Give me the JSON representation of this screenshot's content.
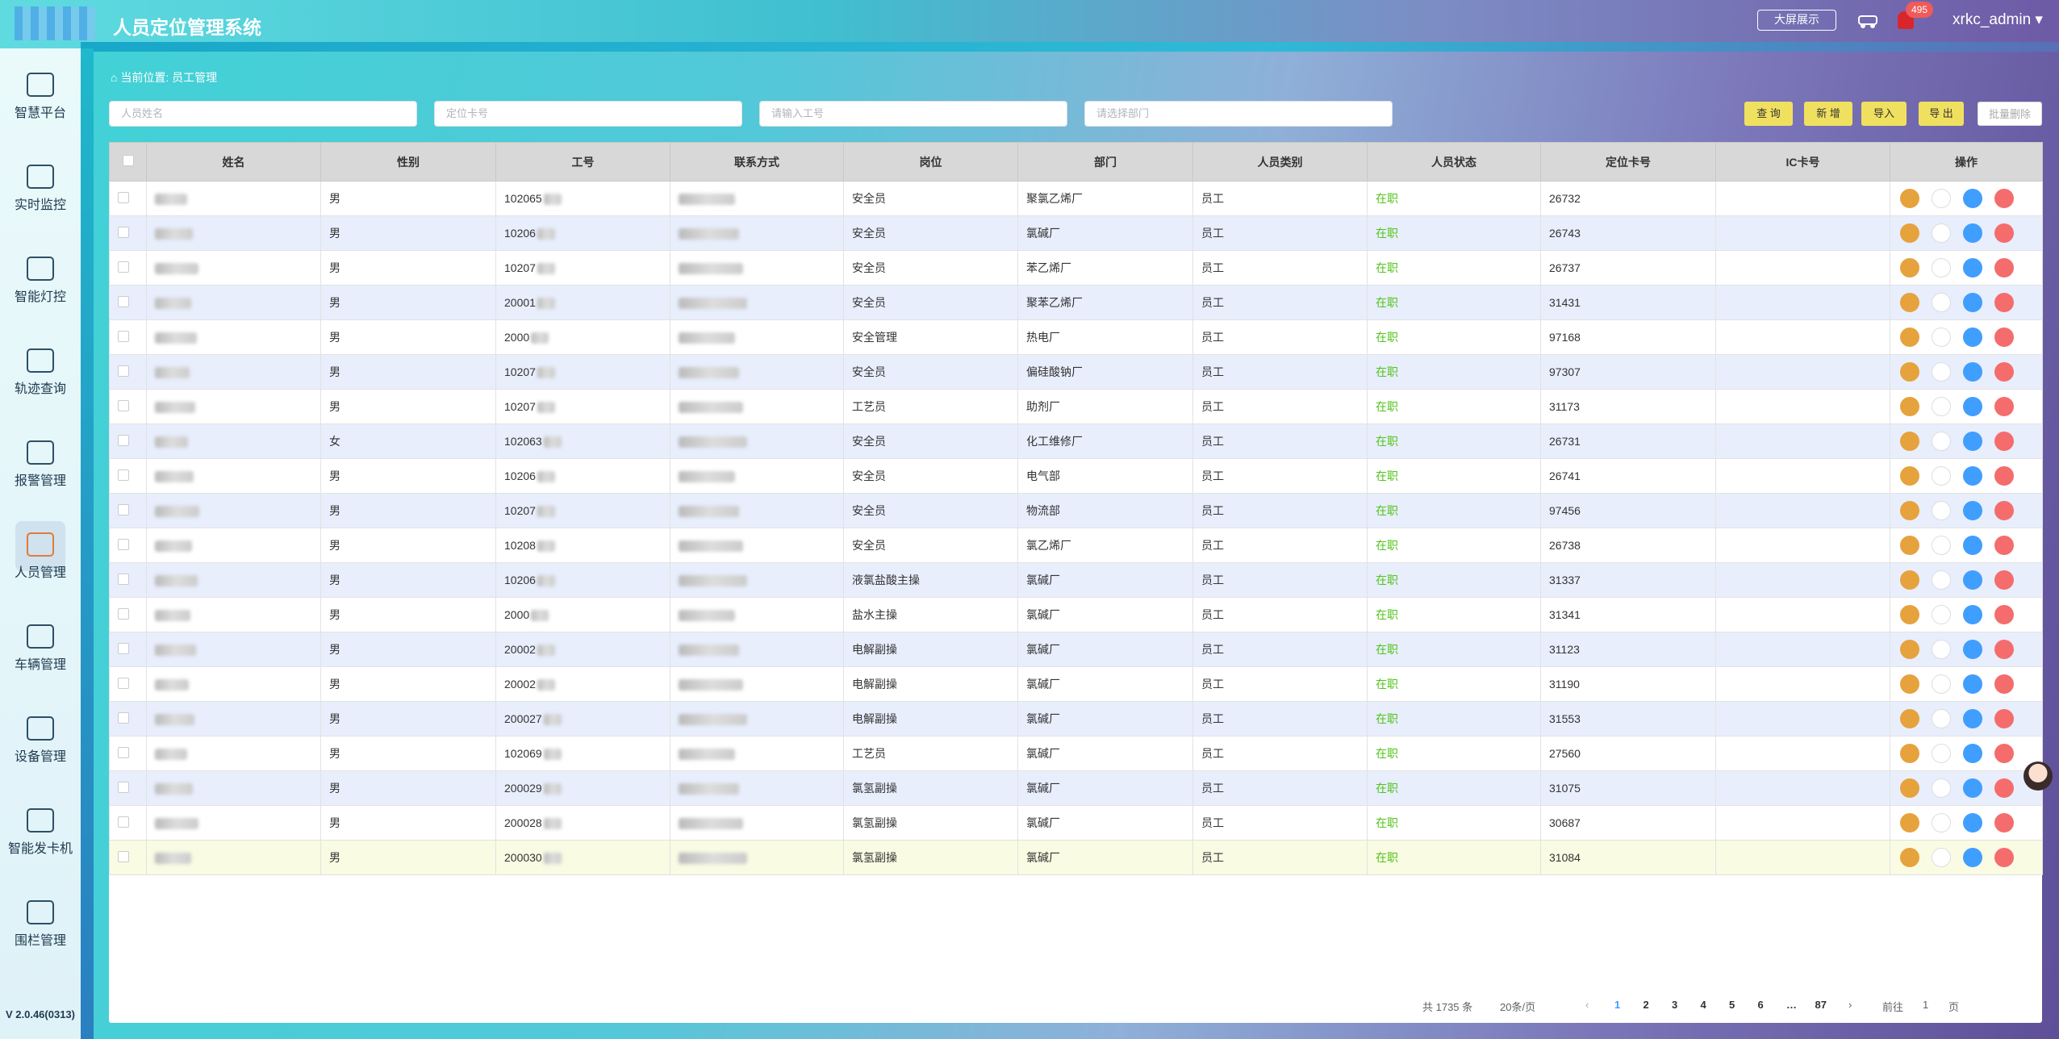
{
  "header": {
    "title": "人员定位管理系统",
    "big_screen": "大屏展示",
    "alert_count": "495",
    "user": "xrkc_admin"
  },
  "sidebar": {
    "items": [
      "智慧平台",
      "实时监控",
      "智能灯控",
      "轨迹查询",
      "报警管理",
      "人员管理",
      "车辆管理",
      "设备管理",
      "智能发卡机",
      "围栏管理"
    ],
    "active": 5,
    "version": "V 2.0.46(0313)"
  },
  "breadcrumb": {
    "label": "当前位置:",
    "current": "员工管理"
  },
  "filters": [
    "人员姓名",
    "定位卡号",
    "请输入工号",
    "请选择部门"
  ],
  "buttons": [
    "查 询",
    "新 增",
    "导入",
    "导 出",
    "批量删除"
  ],
  "table": {
    "columns": [
      "姓名",
      "性别",
      "工号",
      "联系方式",
      "岗位",
      "部门",
      "人员类别",
      "人员状态",
      "定位卡号",
      "IC卡号",
      "操作"
    ],
    "rows": [
      {
        "gender": "男",
        "job_no": "102065",
        "post": "安全员",
        "dept": "聚氯乙烯厂",
        "category": "员工",
        "status": "在职",
        "card": "26732"
      },
      {
        "gender": "男",
        "job_no": "10206",
        "post": "安全员",
        "dept": "氯碱厂",
        "category": "员工",
        "status": "在职",
        "card": "26743"
      },
      {
        "gender": "男",
        "job_no": "10207",
        "post": "安全员",
        "dept": "苯乙烯厂",
        "category": "员工",
        "status": "在职",
        "card": "26737"
      },
      {
        "gender": "男",
        "job_no": "20001",
        "post": "安全员",
        "dept": "聚苯乙烯厂",
        "category": "员工",
        "status": "在职",
        "card": "31431"
      },
      {
        "gender": "男",
        "job_no": "2000",
        "post": "安全管理",
        "dept": "热电厂",
        "category": "员工",
        "status": "在职",
        "card": "97168"
      },
      {
        "gender": "男",
        "job_no": "10207",
        "post": "安全员",
        "dept": "偏硅酸钠厂",
        "category": "员工",
        "status": "在职",
        "card": "97307"
      },
      {
        "gender": "男",
        "job_no": "10207",
        "post": "工艺员",
        "dept": "助剂厂",
        "category": "员工",
        "status": "在职",
        "card": "31173"
      },
      {
        "gender": "女",
        "job_no": "102063",
        "post": "安全员",
        "dept": "化工维修厂",
        "category": "员工",
        "status": "在职",
        "card": "26731"
      },
      {
        "gender": "男",
        "job_no": "10206",
        "post": "安全员",
        "dept": "电气部",
        "category": "员工",
        "status": "在职",
        "card": "26741"
      },
      {
        "gender": "男",
        "job_no": "10207",
        "post": "安全员",
        "dept": "物流部",
        "category": "员工",
        "status": "在职",
        "card": "97456"
      },
      {
        "gender": "男",
        "job_no": "10208",
        "post": "安全员",
        "dept": "氯乙烯厂",
        "category": "员工",
        "status": "在职",
        "card": "26738"
      },
      {
        "gender": "男",
        "job_no": "10206",
        "post": "液氯盐酸主操",
        "dept": "氯碱厂",
        "category": "员工",
        "status": "在职",
        "card": "31337"
      },
      {
        "gender": "男",
        "job_no": "2000",
        "post": "盐水主操",
        "dept": "氯碱厂",
        "category": "员工",
        "status": "在职",
        "card": "31341"
      },
      {
        "gender": "男",
        "job_no": "20002",
        "post": "电解副操",
        "dept": "氯碱厂",
        "category": "员工",
        "status": "在职",
        "card": "31123"
      },
      {
        "gender": "男",
        "job_no": "20002",
        "post": "电解副操",
        "dept": "氯碱厂",
        "category": "员工",
        "status": "在职",
        "card": "31190"
      },
      {
        "gender": "男",
        "job_no": "200027",
        "post": "电解副操",
        "dept": "氯碱厂",
        "category": "员工",
        "status": "在职",
        "card": "31553"
      },
      {
        "gender": "男",
        "job_no": "102069",
        "post": "工艺员",
        "dept": "氯碱厂",
        "category": "员工",
        "status": "在职",
        "card": "27560"
      },
      {
        "gender": "男",
        "job_no": "200029",
        "post": "氯氢副操",
        "dept": "氯碱厂",
        "category": "员工",
        "status": "在职",
        "card": "31075"
      },
      {
        "gender": "男",
        "job_no": "200028",
        "post": "氯氢副操",
        "dept": "氯碱厂",
        "category": "员工",
        "status": "在职",
        "card": "30687"
      },
      {
        "gender": "男",
        "job_no": "200030",
        "post": "氯氢副操",
        "dept": "氯碱厂",
        "category": "员工",
        "status": "在职",
        "card": "31084"
      }
    ]
  },
  "pagination": {
    "total": "共 1735 条",
    "size": "20条/页",
    "pages": [
      "1",
      "2",
      "3",
      "4",
      "5",
      "6",
      "…",
      "87"
    ],
    "current": 0,
    "goto": "前往",
    "goto_page": "1",
    "unit": "页"
  }
}
